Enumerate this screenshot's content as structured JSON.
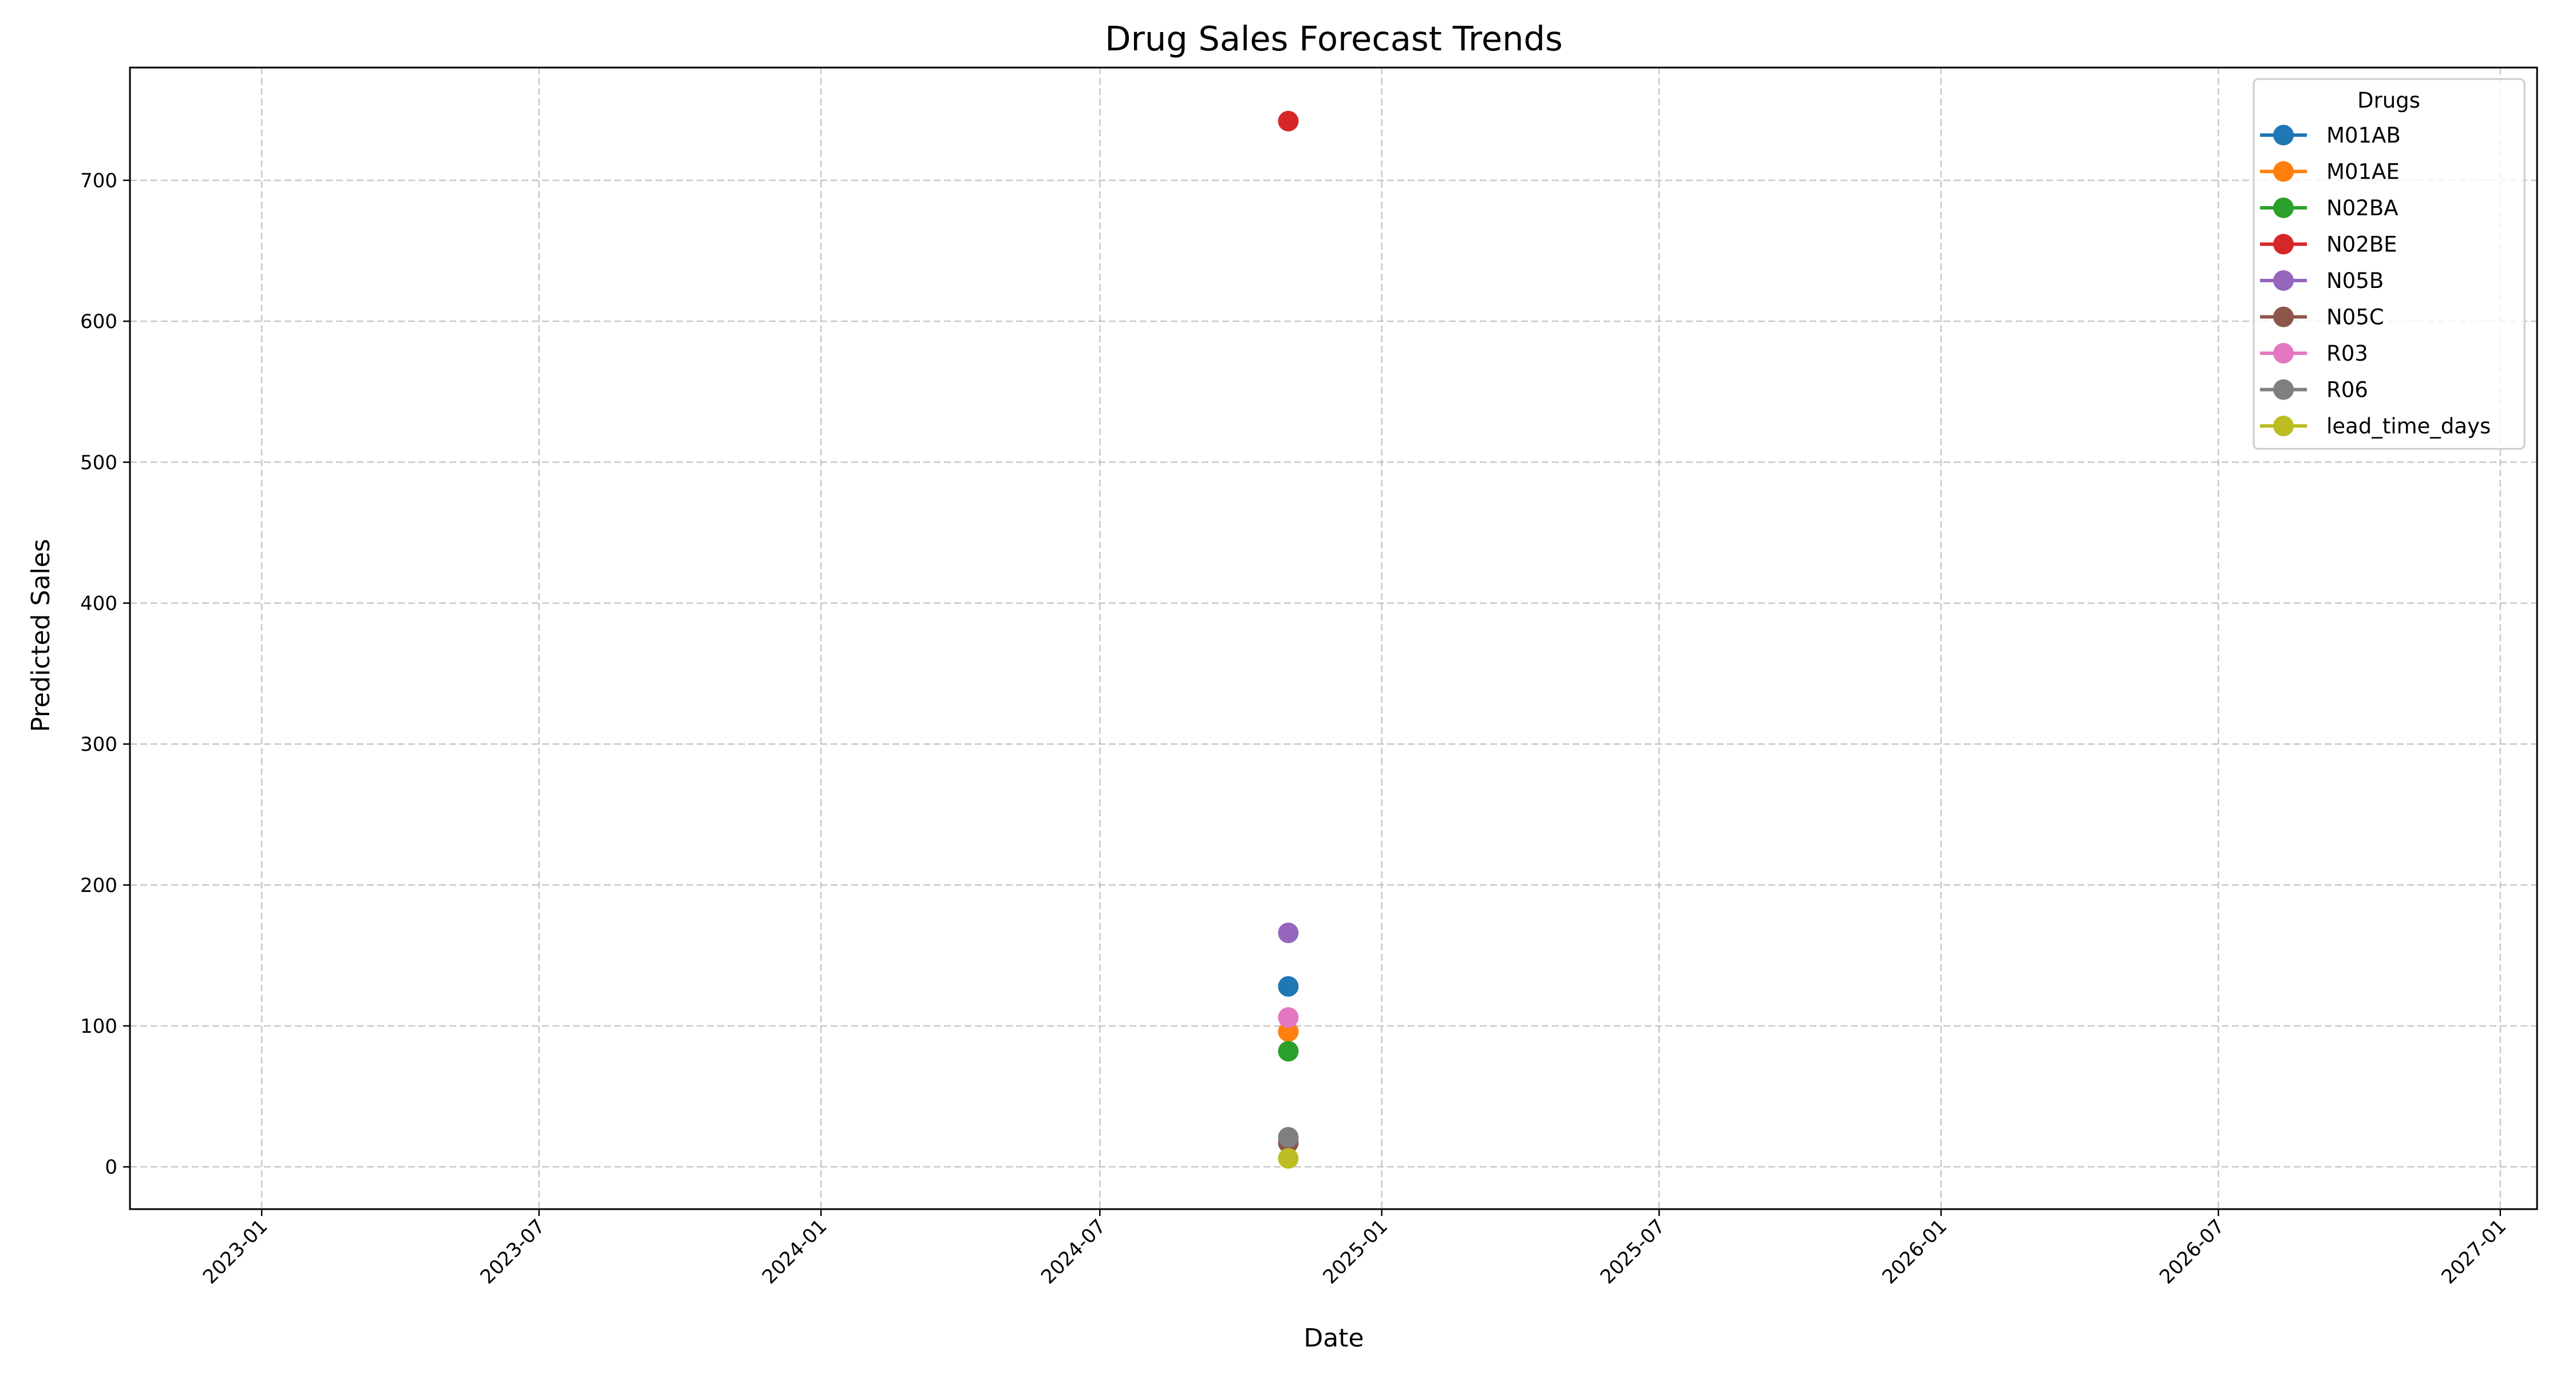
{
  "chart_data": {
    "type": "line",
    "title": "Drug Sales Forecast Trends",
    "xlabel": "Date",
    "ylabel": "Predicted Sales",
    "x_axis_type": "date",
    "xlim": [
      "2022-10-07",
      "2027-01-25"
    ],
    "ylim": [
      -30,
      780
    ],
    "x_ticks": [
      "2023-01",
      "2023-07",
      "2024-01",
      "2024-07",
      "2025-01",
      "2025-07",
      "2026-01",
      "2026-07",
      "2027-01"
    ],
    "y_ticks": [
      0,
      100,
      200,
      300,
      400,
      500,
      600,
      700
    ],
    "grid": true,
    "grid_style": "dashed",
    "x_tick_rotation": 45,
    "legend": {
      "title": "Drugs",
      "placement": "top-right"
    },
    "series": [
      {
        "name": "M01AB",
        "color": "#1f77b4",
        "points": [
          {
            "x": "2024-11-01",
            "y": 128
          }
        ]
      },
      {
        "name": "M01AE",
        "color": "#ff7f0e",
        "points": [
          {
            "x": "2024-11-01",
            "y": 96
          }
        ]
      },
      {
        "name": "N02BA",
        "color": "#2ca02c",
        "points": [
          {
            "x": "2024-11-01",
            "y": 82
          }
        ]
      },
      {
        "name": "N02BE",
        "color": "#d62728",
        "points": [
          {
            "x": "2024-11-01",
            "y": 742
          }
        ]
      },
      {
        "name": "N05B",
        "color": "#9467bd",
        "points": [
          {
            "x": "2024-11-01",
            "y": 166
          }
        ]
      },
      {
        "name": "N05C",
        "color": "#8c564b",
        "points": [
          {
            "x": "2024-11-01",
            "y": 17
          }
        ]
      },
      {
        "name": "R03",
        "color": "#e377c2",
        "points": [
          {
            "x": "2024-11-01",
            "y": 106
          }
        ]
      },
      {
        "name": "R06",
        "color": "#7f7f7f",
        "points": [
          {
            "x": "2024-11-01",
            "y": 21
          }
        ]
      },
      {
        "name": "lead_time_days",
        "color": "#bcbd22",
        "points": [
          {
            "x": "2024-11-01",
            "y": 6
          }
        ]
      }
    ]
  }
}
